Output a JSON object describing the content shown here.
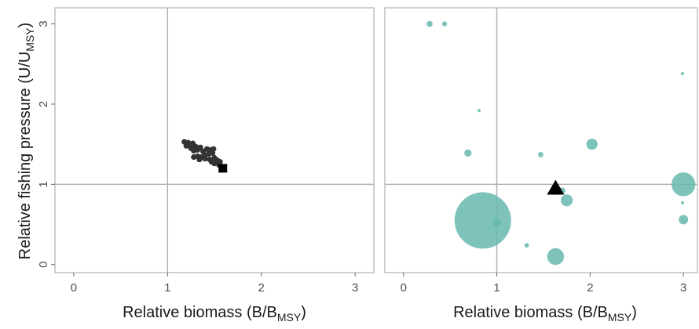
{
  "figure": {
    "ylabel_main": "Relative fishing pressure (U/U",
    "ylabel_sub": "MSY",
    "ylabel_close": ")"
  },
  "chart_data": [
    {
      "type": "scatter",
      "panel": "left",
      "xlabel_main": "Relative biomass (B/B",
      "xlabel_sub": "MSY",
      "xlabel_close": ")",
      "xlim": [
        -0.2,
        3.2
      ],
      "ylim": [
        -0.1,
        3.2
      ],
      "xticks": [
        "0",
        "1",
        "2",
        "3"
      ],
      "yticks": [
        "0",
        "1",
        "2",
        "3"
      ],
      "reference_lines": {
        "x": 1,
        "y": 1
      },
      "colors": {
        "points": "#333333",
        "current": "#000000"
      },
      "series": [
        {
          "points": [
            {
              "x": 1.18,
              "y": 1.53
            },
            {
              "x": 1.2,
              "y": 1.48
            },
            {
              "x": 1.22,
              "y": 1.52
            },
            {
              "x": 1.24,
              "y": 1.49
            },
            {
              "x": 1.27,
              "y": 1.51
            },
            {
              "x": 1.3,
              "y": 1.47
            },
            {
              "x": 1.25,
              "y": 1.45
            },
            {
              "x": 1.28,
              "y": 1.42
            },
            {
              "x": 1.32,
              "y": 1.43
            },
            {
              "x": 1.35,
              "y": 1.46
            },
            {
              "x": 1.38,
              "y": 1.41
            },
            {
              "x": 1.42,
              "y": 1.44
            },
            {
              "x": 1.45,
              "y": 1.43
            },
            {
              "x": 1.49,
              "y": 1.44
            },
            {
              "x": 1.48,
              "y": 1.39
            },
            {
              "x": 1.44,
              "y": 1.38
            },
            {
              "x": 1.4,
              "y": 1.36
            },
            {
              "x": 1.36,
              "y": 1.34
            },
            {
              "x": 1.32,
              "y": 1.35
            },
            {
              "x": 1.28,
              "y": 1.34
            },
            {
              "x": 1.34,
              "y": 1.31
            },
            {
              "x": 1.4,
              "y": 1.32
            },
            {
              "x": 1.45,
              "y": 1.31
            },
            {
              "x": 1.5,
              "y": 1.33
            },
            {
              "x": 1.53,
              "y": 1.3
            },
            {
              "x": 1.56,
              "y": 1.28
            },
            {
              "x": 1.5,
              "y": 1.26
            },
            {
              "x": 1.47,
              "y": 1.28
            },
            {
              "x": 1.55,
              "y": 1.24
            },
            {
              "x": 1.58,
              "y": 1.22
            }
          ]
        }
      ],
      "current": {
        "x": 1.59,
        "y": 1.2,
        "shape": "square"
      }
    },
    {
      "type": "scatter",
      "panel": "right",
      "xlabel_main": "Relative biomass (B/B",
      "xlabel_sub": "MSY",
      "xlabel_close": ")",
      "xlim": [
        -0.2,
        3.15
      ],
      "ylim": [
        -0.1,
        3.2
      ],
      "xticks": [
        "0",
        "1",
        "2",
        "3"
      ],
      "reference_lines": {
        "x": 1,
        "y": 1
      },
      "colors": {
        "bubbles": "#66b8ae",
        "aggregate": "#000000"
      },
      "series": [
        {
          "points": [
            {
              "x": 0.28,
              "y": 3.0,
              "size": 0.1
            },
            {
              "x": 0.44,
              "y": 3.0,
              "size": 0.07
            },
            {
              "x": 0.81,
              "y": 1.92,
              "size": 0.03
            },
            {
              "x": 0.69,
              "y": 1.39,
              "size": 0.15
            },
            {
              "x": 0.85,
              "y": 0.55,
              "size": 9.0
            },
            {
              "x": 1.0,
              "y": 0.52,
              "size": 0.2
            },
            {
              "x": 1.32,
              "y": 0.24,
              "size": 0.06
            },
            {
              "x": 1.47,
              "y": 1.37,
              "size": 0.08
            },
            {
              "x": 1.63,
              "y": 0.1,
              "size": 0.8
            },
            {
              "x": 1.7,
              "y": 0.92,
              "size": 0.12
            },
            {
              "x": 1.75,
              "y": 0.8,
              "size": 0.4
            },
            {
              "x": 2.02,
              "y": 1.5,
              "size": 0.35
            },
            {
              "x": 3.0,
              "y": 1.0,
              "size": 1.6
            },
            {
              "x": 2.99,
              "y": 2.38,
              "size": 0.01
            },
            {
              "x": 2.99,
              "y": 0.77,
              "size": 0.02
            },
            {
              "x": 3.0,
              "y": 0.56,
              "size": 0.25
            }
          ]
        }
      ],
      "aggregate": {
        "x": 1.63,
        "y": 0.95,
        "shape": "triangle"
      }
    }
  ]
}
